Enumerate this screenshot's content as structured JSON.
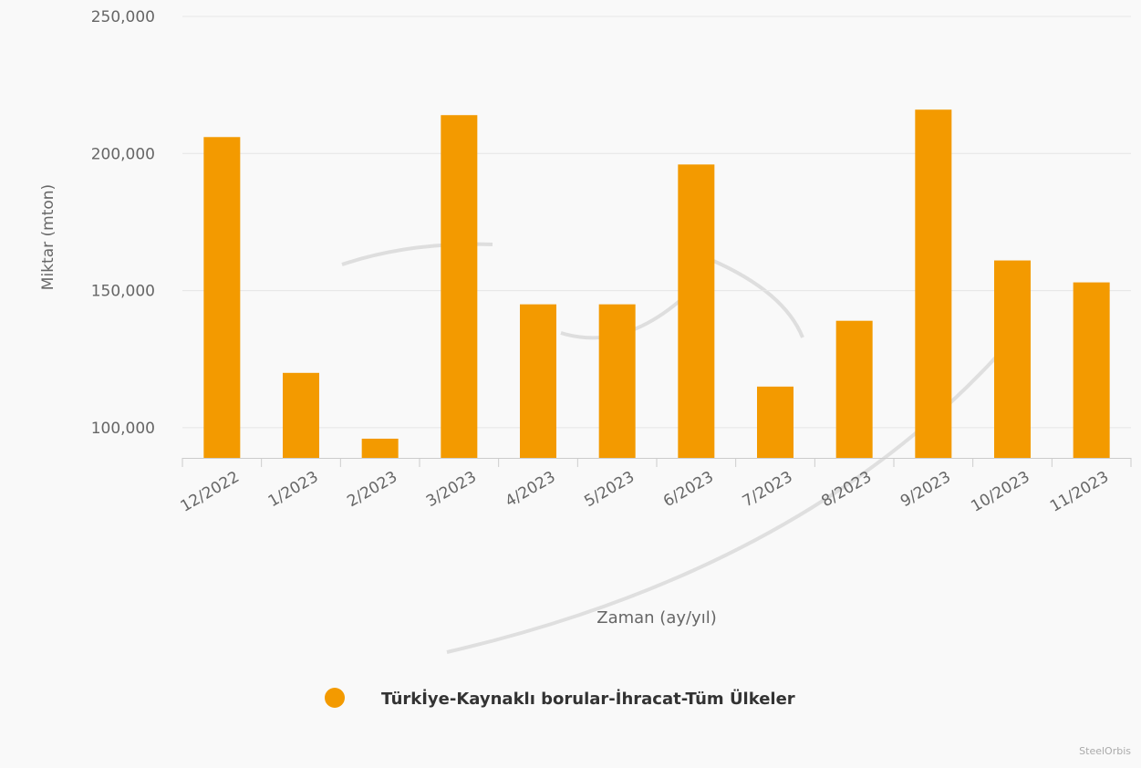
{
  "chart_data": {
    "type": "bar",
    "categories": [
      "12/2022",
      "1/2023",
      "2/2023",
      "3/2023",
      "4/2023",
      "5/2023",
      "6/2023",
      "7/2023",
      "8/2023",
      "9/2023",
      "10/2023",
      "11/2023"
    ],
    "series": [
      {
        "name": "Türkİye-Kaynaklı borular-İhracat-Tüm Ülkeler",
        "color": "#f39a00",
        "values": [
          206000,
          120000,
          96000,
          214000,
          145000,
          145000,
          196000,
          115000,
          139000,
          216000,
          161000,
          153000
        ]
      }
    ],
    "xlabel": "Zaman (ay/yıl)",
    "ylabel": "Miktar (mton)",
    "ylim": [
      89000,
      250000
    ],
    "yticks": [
      100000,
      150000,
      200000,
      250000
    ],
    "ytick_labels": [
      "100,000",
      "150,000",
      "200,000",
      "250,000"
    ],
    "grid": true,
    "legend_position": "bottom"
  },
  "watermark": "SteelOrbis"
}
